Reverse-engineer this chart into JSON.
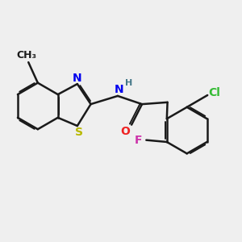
{
  "bg_color": "#efefef",
  "bond_color": "#1a1a1a",
  "bond_width": 1.8,
  "atom_colors": {
    "S": "#b8b800",
    "N": "#0000ee",
    "O": "#ee2222",
    "Cl": "#33bb33",
    "F": "#cc33aa",
    "C": "#1a1a1a",
    "H": "#447788"
  },
  "font_size": 10,
  "fig_size": [
    3.0,
    3.0
  ],
  "dpi": 100
}
